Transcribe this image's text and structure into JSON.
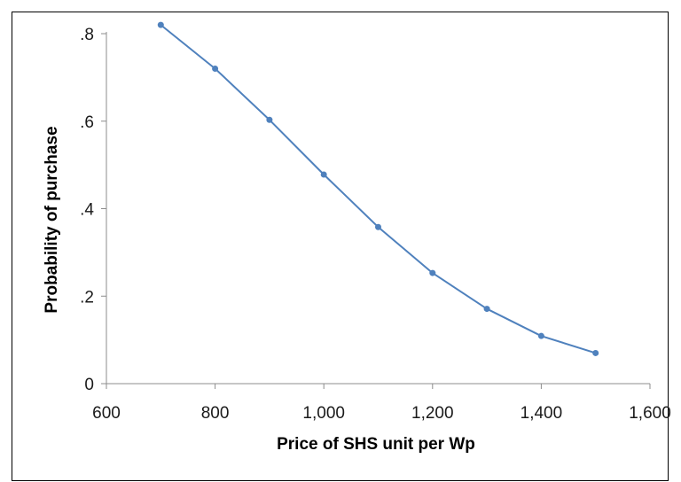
{
  "chart_data": {
    "type": "line",
    "title": "",
    "xlabel": "Price of SHS unit per Wp",
    "ylabel": "Probability of purchase",
    "xlim": [
      600,
      1600
    ],
    "ylim": [
      0,
      0.8
    ],
    "x_ticks": [
      600,
      800,
      1000,
      1200,
      1400,
      1600
    ],
    "x_tick_labels": [
      "600",
      "800",
      "1,000",
      "1,200",
      "1,400",
      "1,600"
    ],
    "y_ticks": [
      0,
      0.2,
      0.4,
      0.6,
      0.8
    ],
    "y_tick_labels": [
      "0",
      ".2",
      ".4",
      ".6",
      ".8"
    ],
    "grid": false,
    "legend": "none",
    "series": [
      {
        "color": "#4f81bd",
        "x": [
          700,
          800,
          900,
          1000,
          1100,
          1200,
          1300,
          1400,
          1500
        ],
        "y": [
          0.82,
          0.72,
          0.603,
          0.478,
          0.358,
          0.253,
          0.171,
          0.109,
          0.07
        ]
      }
    ]
  }
}
